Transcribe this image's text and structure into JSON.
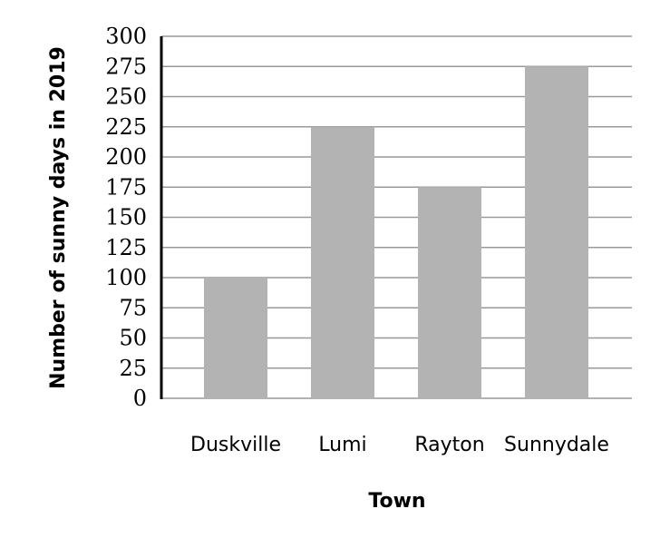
{
  "chart_data": {
    "type": "bar",
    "categories": [
      "Duskville",
      "Lumi",
      "Rayton",
      "Sunnydale"
    ],
    "values": [
      100,
      225,
      175,
      275
    ],
    "xlabel": "Town",
    "ylabel": "Number of sunny days in 2019",
    "ylim": [
      0,
      300
    ],
    "yticks": [
      0,
      25,
      50,
      75,
      100,
      125,
      150,
      175,
      200,
      225,
      250,
      275,
      300
    ],
    "grid": true,
    "bar_color": "#b3b3b3",
    "grid_color": "#999999"
  }
}
